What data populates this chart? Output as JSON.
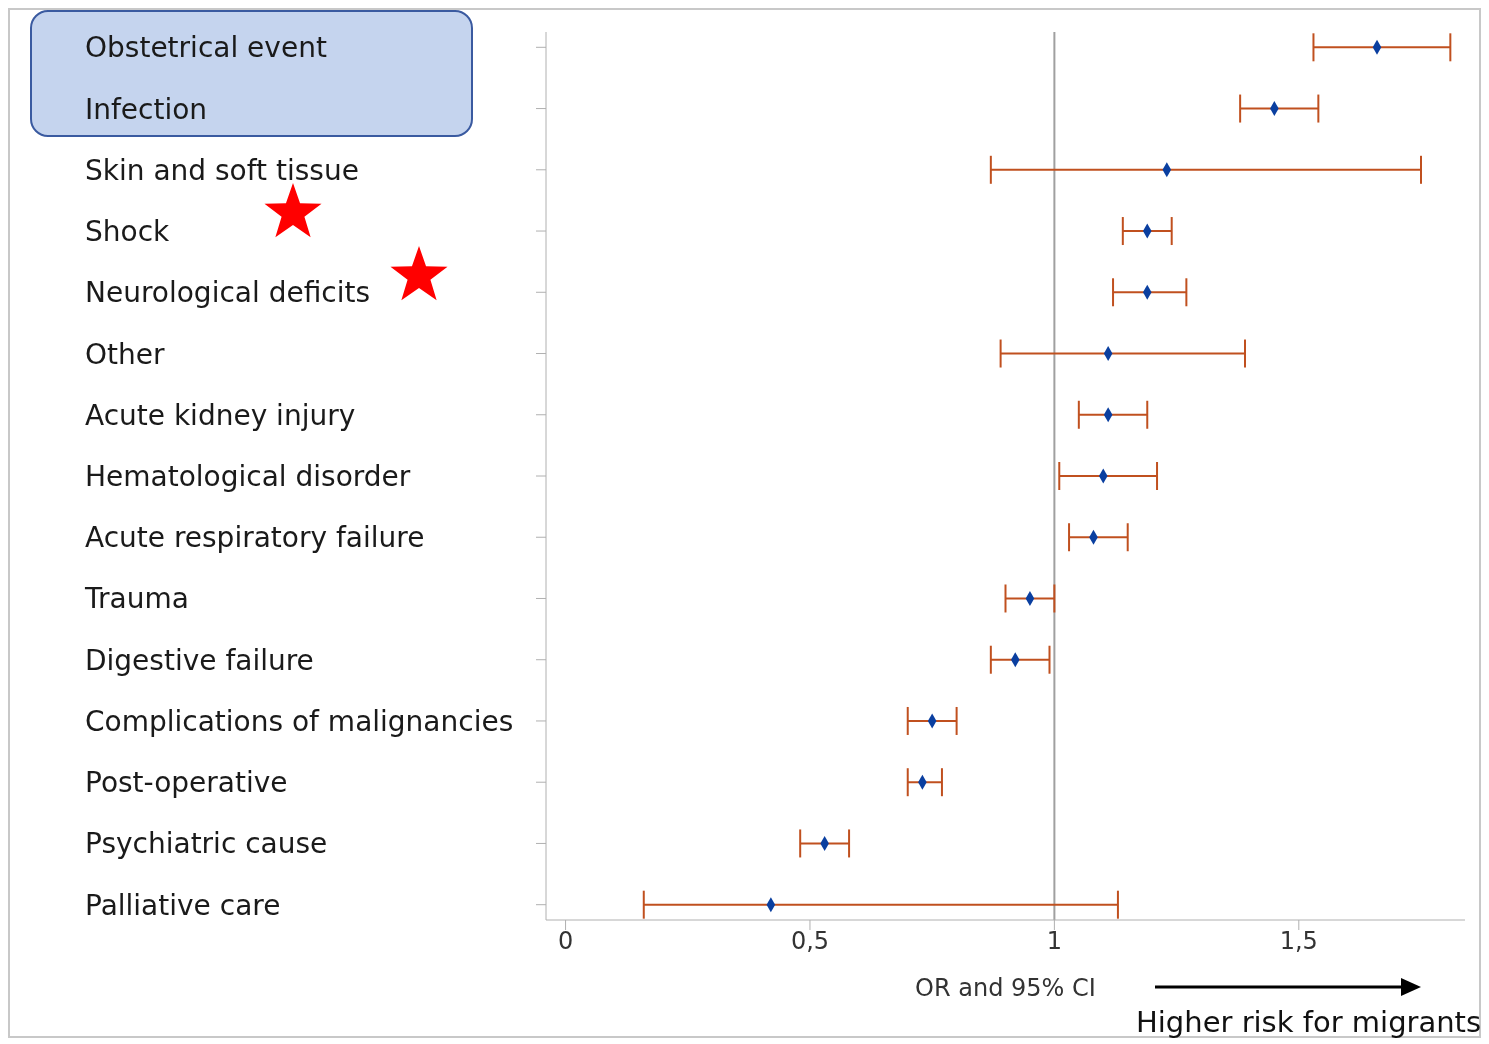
{
  "chart_data": {
    "type": "scatter",
    "orientation": "horizontal",
    "xlabel": "OR and 95% CI",
    "categories": [
      "Obstetrical event",
      "Infection",
      "Skin and soft tissue",
      "Shock",
      "Neurological deficits",
      "Other",
      "Acute kidney injury",
      "Hematological disorder",
      "Acute respiratory failure",
      "Trauma",
      "Digestive failure",
      "Complications of malignancies",
      "Post-operative",
      "Psychiatric cause",
      "Palliative care"
    ],
    "series": [
      {
        "color": "#0a3fa0",
        "values": [
          1.66,
          1.45,
          1.23,
          1.19,
          1.19,
          1.11,
          1.11,
          1.1,
          1.08,
          0.95,
          0.92,
          0.75,
          0.73,
          0.53,
          0.42
        ],
        "errors": [
          [
            1.53,
            1.81
          ],
          [
            1.38,
            1.54
          ],
          [
            0.87,
            1.75
          ],
          [
            1.14,
            1.24
          ],
          [
            1.12,
            1.27
          ],
          [
            0.89,
            1.39
          ],
          [
            1.05,
            1.19
          ],
          [
            1.01,
            1.21
          ],
          [
            1.03,
            1.15
          ],
          [
            0.9,
            1.0
          ],
          [
            0.87,
            0.99
          ],
          [
            0.7,
            0.8
          ],
          [
            0.7,
            0.77
          ],
          [
            0.48,
            0.58
          ],
          [
            0.16,
            1.13
          ]
        ]
      }
    ],
    "xlim": [
      -0.04,
      1.84
    ],
    "xticks": [
      0,
      {
        "value": 0.5,
        "label": "0,5"
      },
      1,
      {
        "value": 1.5,
        "label": "1,5"
      }
    ],
    "ref_lines": [
      {
        "axis": "x",
        "value": 1,
        "color": "#a0a0a0"
      }
    ],
    "marker": "diamond",
    "grid": false,
    "legend": false,
    "annotations": [
      "Higher risk for migrants"
    ]
  }
}
